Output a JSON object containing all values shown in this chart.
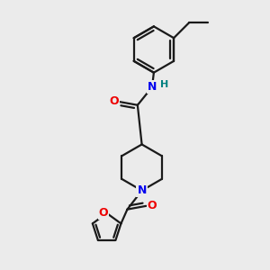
{
  "background_color": "#ebebeb",
  "bond_color": "#1a1a1a",
  "nitrogen_color": "#0000ee",
  "oxygen_color": "#ee0000",
  "hydrogen_color": "#008080",
  "line_width": 1.6,
  "figsize": [
    3.0,
    3.0
  ],
  "dpi": 100,
  "xlim": [
    -1.1,
    1.1
  ],
  "ylim": [
    -1.55,
    1.55
  ]
}
